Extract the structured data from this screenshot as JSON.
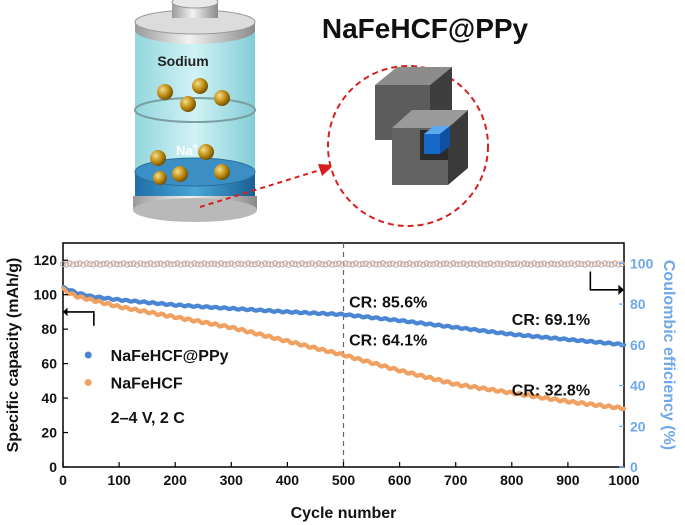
{
  "title": "NaFeHCF@PPy",
  "battery": {
    "sodium_label": "Sodium",
    "ion_label": "Na",
    "ion_charge": "+"
  },
  "colors": {
    "ppy": "#4a86d4",
    "bare": "#f0a060",
    "ce": "#6fa8e8",
    "ce_bare": "#e8a27a"
  },
  "chart_data": {
    "type": "scatter",
    "xlabel": "Cycle number",
    "ylabel_left": "Specific capacity (mAh/g)",
    "ylabel_right": "Coulombic efficiency (%)",
    "xlim": [
      0,
      1000
    ],
    "ylim_left": [
      0,
      130
    ],
    "ylim_right": [
      0,
      110
    ],
    "x_ticks": [
      "0",
      "100",
      "200",
      "300",
      "400",
      "500",
      "600",
      "700",
      "800",
      "900",
      "1000"
    ],
    "y_ticks_left": [
      "0",
      "20",
      "40",
      "60",
      "80",
      "100",
      "120"
    ],
    "y_ticks_right": [
      "0",
      "20",
      "40",
      "60",
      "80",
      "100"
    ],
    "conditions": "2–4 V, 2 C",
    "vline_x": 500,
    "series": [
      {
        "name": "NaFeHCF@PPy",
        "axis": "left",
        "x": [
          1,
          10,
          25,
          50,
          100,
          200,
          300,
          400,
          500,
          600,
          700,
          800,
          900,
          1000
        ],
        "values": [
          104,
          103,
          101,
          99,
          97,
          94,
          92,
          90,
          88.5,
          85,
          81,
          77,
          74,
          71
        ]
      },
      {
        "name": "NaFeHCF",
        "axis": "left",
        "x": [
          1,
          10,
          25,
          50,
          100,
          200,
          300,
          400,
          500,
          600,
          700,
          800,
          900,
          1000
        ],
        "values": [
          103,
          101,
          99,
          97,
          93,
          87,
          81,
          73,
          65,
          56,
          48,
          43,
          38,
          34
        ]
      },
      {
        "axis": "right",
        "x": [
          0,
          1000
        ],
        "values": [
          99.5,
          99.5
        ]
      },
      {
        "axis": "right",
        "x": [
          0,
          1000
        ],
        "values": [
          99.8,
          99.8
        ]
      }
    ],
    "annotations": [
      {
        "text": "CR: 85.6%"
      },
      {
        "text": "CR: 64.1%"
      },
      {
        "text": "CR: 69.1%"
      },
      {
        "text": "CR: 32.8%"
      }
    ]
  }
}
